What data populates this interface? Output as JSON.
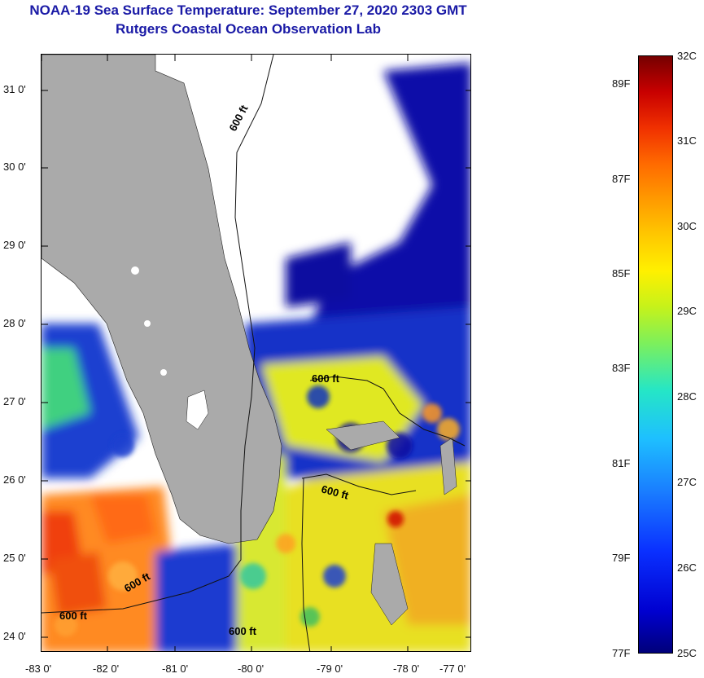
{
  "title": {
    "line1": "NOAA-19 Sea Surface Temperature:  September 27, 2020 2303 GMT",
    "line2": "Rutgers Coastal Ocean Observation Lab"
  },
  "map": {
    "latitude_labels": [
      "31 0'",
      "30 0'",
      "29 0'",
      "28 0'",
      "27 0'",
      "26 0'",
      "25 0'",
      "24 0'"
    ],
    "longitude_labels": [
      "-83 0'",
      "-82 0'",
      "-81 0'",
      "-80 0'",
      "-79 0'",
      "-78 0'",
      "-77 0'"
    ],
    "contour_labels": [
      "600 ft",
      "600 ft",
      "600 ft",
      "600 ft",
      "600 ft",
      "600 ft"
    ],
    "colors": {
      "land": "#aaaaaa",
      "cloud": "#ffffff",
      "cold_water": "#0a0aa0",
      "warm_water": "#ff7a20"
    }
  },
  "colorbar": {
    "fahrenheit_labels": [
      "89F",
      "87F",
      "85F",
      "83F",
      "81F",
      "79F",
      "77F"
    ],
    "celsius_labels": [
      "32C",
      "31C",
      "30C",
      "29C",
      "28C",
      "27C",
      "26C",
      "25C"
    ],
    "range_c": [
      25,
      32
    ]
  }
}
